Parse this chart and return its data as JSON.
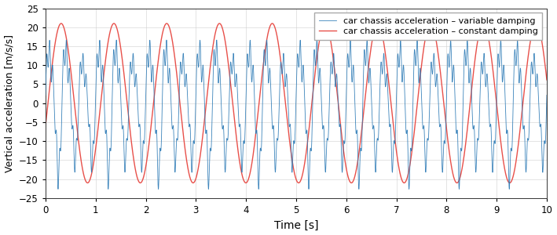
{
  "title": "",
  "xlabel": "Time [s]",
  "ylabel": "Vertical acceleration [m/s/s]",
  "xlim": [
    0,
    10
  ],
  "ylim": [
    -25,
    25
  ],
  "yticks": [
    -25,
    -20,
    -15,
    -10,
    -5,
    0,
    5,
    10,
    15,
    20,
    25
  ],
  "xticks": [
    0,
    1,
    2,
    3,
    4,
    5,
    6,
    7,
    8,
    9,
    10
  ],
  "red_amplitude": 21.0,
  "red_frequency": 0.95,
  "red_phase_deg": 17,
  "blue_base_amplitude": 14.0,
  "blue_base_frequency": 3.0,
  "blue_fast_amplitude": 5.0,
  "blue_fast_frequency": 15.0,
  "blue_env_amplitude": 3.0,
  "blue_env_frequency": 1.0,
  "blue_color": "#2777b4",
  "red_color": "#e8504a",
  "legend_blue": "car chassis acceleration – variable damping",
  "legend_red": "car chassis acceleration – constant damping",
  "background_color": "#ffffff",
  "grid_color": "#d0d0d0",
  "n_points": 20000,
  "duration": 10.0,
  "figwidth": 7.09,
  "figheight": 3.0,
  "dpi": 100
}
